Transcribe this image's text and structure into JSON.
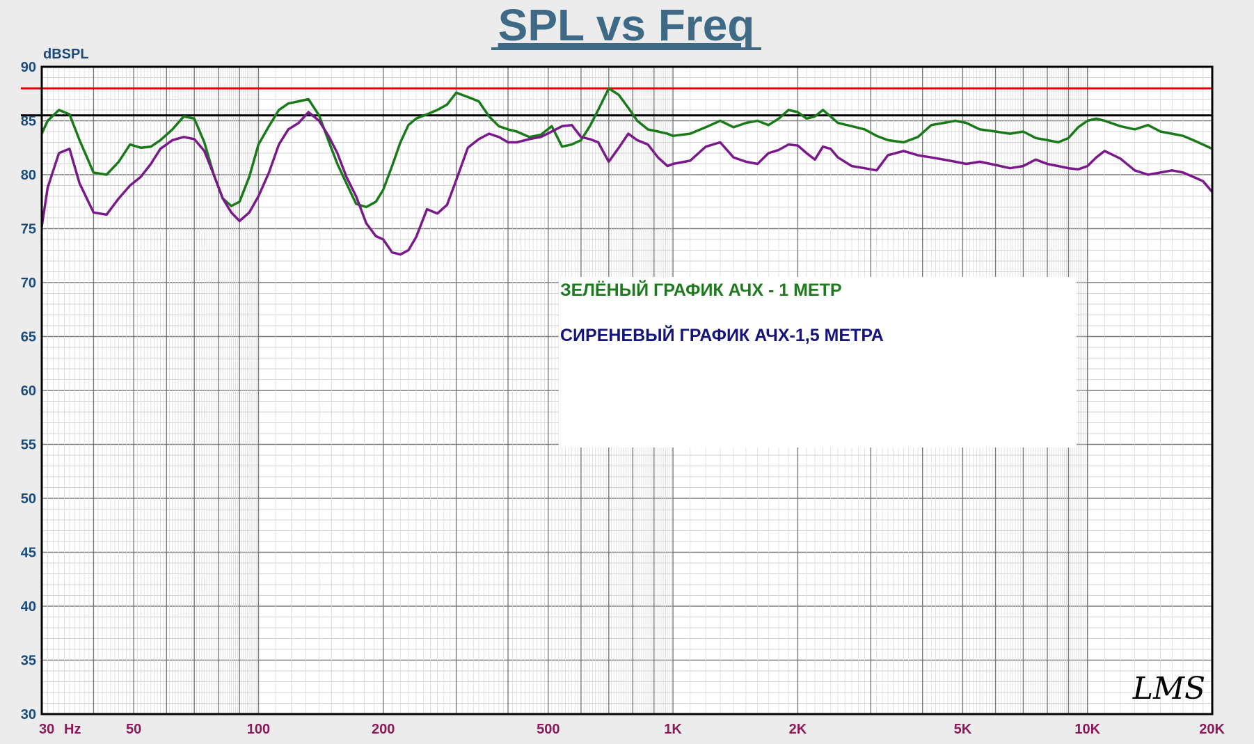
{
  "chart_data": {
    "type": "line",
    "title": "SPL vs Freq",
    "ylabel": "dBSPL",
    "xunit": "Hz",
    "xscale": "log",
    "xlim": [
      30,
      20000
    ],
    "ylim": [
      30,
      90
    ],
    "grid": true,
    "y_ticks": [
      90,
      85,
      80,
      75,
      70,
      65,
      60,
      55,
      50,
      45,
      40,
      35,
      30
    ],
    "x_ticks": [
      {
        "value": 30,
        "label": "30"
      },
      {
        "value": 50,
        "label": "50"
      },
      {
        "value": 100,
        "label": "100"
      },
      {
        "value": 200,
        "label": "200"
      },
      {
        "value": 500,
        "label": "500"
      },
      {
        "value": 1000,
        "label": "1K"
      },
      {
        "value": 2000,
        "label": "2K"
      },
      {
        "value": 5000,
        "label": "5K"
      },
      {
        "value": 10000,
        "label": "10K"
      },
      {
        "value": 20000,
        "label": "20K"
      }
    ],
    "reference_lines": [
      {
        "y": 88,
        "color": "#e00000"
      },
      {
        "y": 85.5,
        "color": "#000000"
      }
    ],
    "annotations": [
      {
        "text": "ЗЕЛЁНЫЙ ГРАФИК АЧХ - 1 МЕТР",
        "color": "#1f7a1f"
      },
      {
        "text": "СИРЕНЕВЫЙ ГРАФИК АЧХ-1,5 МЕТРА",
        "color": "#14147a"
      }
    ],
    "logo_text": "LMS",
    "series": [
      {
        "color": "#1a7a1a",
        "x": [
          30,
          31,
          33,
          35,
          37,
          40,
          43,
          46,
          49,
          52,
          55,
          58,
          62,
          66,
          70,
          74,
          78,
          82,
          86,
          90,
          95,
          100,
          106,
          112,
          118,
          125,
          132,
          140,
          148,
          155,
          163,
          172,
          182,
          192,
          200,
          210,
          220,
          230,
          240,
          255,
          270,
          285,
          300,
          320,
          340,
          360,
          380,
          400,
          420,
          450,
          480,
          510,
          540,
          570,
          600,
          630,
          660,
          700,
          740,
          780,
          820,
          870,
          920,
          970,
          1000,
          1100,
          1200,
          1300,
          1400,
          1500,
          1600,
          1700,
          1800,
          1900,
          2000,
          2100,
          2200,
          2300,
          2400,
          2500,
          2700,
          2900,
          3100,
          3300,
          3600,
          3900,
          4200,
          4500,
          4800,
          5100,
          5500,
          6000,
          6500,
          7000,
          7500,
          8000,
          8500,
          9000,
          9500,
          10000,
          10500,
          11000,
          12000,
          13000,
          14000,
          15000,
          16000,
          17000,
          18000,
          19000,
          20000
        ],
        "y": [
          83.8,
          85.0,
          86.0,
          85.6,
          83.2,
          80.2,
          80.0,
          81.2,
          82.8,
          82.5,
          82.6,
          83.2,
          84.2,
          85.4,
          85.2,
          83.0,
          80.0,
          77.8,
          77.1,
          77.5,
          79.8,
          82.8,
          84.5,
          86.0,
          86.6,
          86.8,
          87.0,
          85.5,
          83.0,
          81.0,
          79.2,
          77.3,
          77.0,
          77.5,
          78.6,
          80.8,
          83.0,
          84.6,
          85.2,
          85.6,
          86.0,
          86.5,
          87.6,
          87.2,
          86.8,
          85.4,
          84.5,
          84.2,
          84.0,
          83.5,
          83.7,
          84.5,
          82.6,
          82.8,
          83.2,
          84.5,
          86.0,
          88.0,
          87.4,
          86.2,
          85.0,
          84.2,
          84.0,
          83.8,
          83.6,
          83.8,
          84.4,
          85.0,
          84.4,
          84.8,
          85.0,
          84.6,
          85.2,
          86.0,
          85.8,
          85.2,
          85.4,
          86.0,
          85.4,
          84.8,
          84.5,
          84.2,
          83.6,
          83.2,
          83.0,
          83.5,
          84.6,
          84.8,
          85.0,
          84.8,
          84.2,
          84.0,
          83.8,
          84.0,
          83.4,
          83.2,
          83.0,
          83.4,
          84.4,
          85.0,
          85.2,
          85.0,
          84.5,
          84.2,
          84.6,
          84.0,
          83.8,
          83.6,
          83.2,
          82.8,
          82.4
        ]
      },
      {
        "color": "#7a1a8a",
        "x": [
          30,
          31,
          33,
          35,
          37,
          40,
          43,
          46,
          49,
          52,
          55,
          58,
          62,
          66,
          70,
          74,
          78,
          82,
          86,
          90,
          95,
          100,
          106,
          112,
          118,
          125,
          132,
          140,
          148,
          155,
          163,
          172,
          182,
          192,
          200,
          210,
          220,
          230,
          240,
          255,
          270,
          285,
          300,
          320,
          340,
          360,
          380,
          400,
          420,
          450,
          480,
          510,
          540,
          570,
          600,
          630,
          660,
          700,
          740,
          780,
          820,
          870,
          920,
          970,
          1000,
          1100,
          1200,
          1300,
          1400,
          1500,
          1600,
          1700,
          1800,
          1900,
          2000,
          2100,
          2200,
          2300,
          2400,
          2500,
          2700,
          2900,
          3100,
          3300,
          3600,
          3900,
          4200,
          4500,
          4800,
          5100,
          5500,
          6000,
          6500,
          7000,
          7500,
          8000,
          8500,
          9000,
          9500,
          10000,
          10500,
          11000,
          12000,
          13000,
          14000,
          15000,
          16000,
          17000,
          18000,
          19000,
          20000
        ],
        "y": [
          75.2,
          78.8,
          82.0,
          82.4,
          79.2,
          76.5,
          76.3,
          77.8,
          79.0,
          79.8,
          81.0,
          82.4,
          83.2,
          83.5,
          83.3,
          82.2,
          80.0,
          77.8,
          76.5,
          75.7,
          76.5,
          78.0,
          80.2,
          82.8,
          84.2,
          84.8,
          85.8,
          85.0,
          83.5,
          82.0,
          79.8,
          78.0,
          75.5,
          74.3,
          74.0,
          72.8,
          72.6,
          73.0,
          74.2,
          76.8,
          76.4,
          77.2,
          79.5,
          82.5,
          83.3,
          83.8,
          83.5,
          83.0,
          83.0,
          83.3,
          83.5,
          84.0,
          84.5,
          84.6,
          83.5,
          83.3,
          83.0,
          81.2,
          82.5,
          83.8,
          83.2,
          82.8,
          81.6,
          80.8,
          81.0,
          81.3,
          82.6,
          83.0,
          81.6,
          81.2,
          81.0,
          82.0,
          82.3,
          82.8,
          82.7,
          82.0,
          81.4,
          82.6,
          82.4,
          81.6,
          80.8,
          80.6,
          80.4,
          81.8,
          82.2,
          81.8,
          81.6,
          81.4,
          81.2,
          81.0,
          81.2,
          80.9,
          80.6,
          80.8,
          81.4,
          81.0,
          80.8,
          80.6,
          80.5,
          80.8,
          81.6,
          82.2,
          81.5,
          80.4,
          80.0,
          80.2,
          80.4,
          80.2,
          79.8,
          79.4,
          78.4
        ]
      }
    ]
  }
}
